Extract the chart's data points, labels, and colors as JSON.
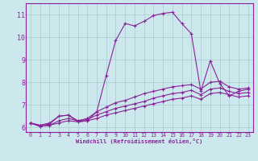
{
  "xlabel": "Windchill (Refroidissement éolien,°C)",
  "xlim": [
    -0.5,
    23.5
  ],
  "ylim": [
    5.8,
    11.5
  ],
  "bg_color": "#cce8ec",
  "line_color": "#882299",
  "grid_color": "#a8ccd0",
  "xticks": [
    0,
    1,
    2,
    3,
    4,
    5,
    6,
    7,
    8,
    9,
    10,
    11,
    12,
    13,
    14,
    15,
    16,
    17,
    18,
    19,
    20,
    21,
    22,
    23
  ],
  "yticks": [
    6,
    7,
    8,
    9,
    10,
    11
  ],
  "curves": [
    {
      "x": [
        0,
        1,
        2,
        3,
        4,
        5,
        6,
        7,
        8,
        9,
        10,
        11,
        12,
        13,
        14,
        15,
        16,
        17,
        18,
        19,
        20,
        21,
        22,
        23
      ],
      "y": [
        6.2,
        6.1,
        6.15,
        6.5,
        6.55,
        6.25,
        6.3,
        6.7,
        8.3,
        9.85,
        10.6,
        10.5,
        10.7,
        10.95,
        11.05,
        11.1,
        10.6,
        10.15,
        7.6,
        8.95,
        7.95,
        7.4,
        7.6,
        7.7
      ]
    },
    {
      "x": [
        0,
        1,
        2,
        3,
        4,
        5,
        6,
        7,
        8,
        9,
        10,
        11,
        12,
        13,
        14,
        15,
        16,
        17,
        18,
        19,
        20,
        21,
        22,
        23
      ],
      "y": [
        6.2,
        6.1,
        6.2,
        6.5,
        6.55,
        6.3,
        6.4,
        6.7,
        6.9,
        7.1,
        7.2,
        7.35,
        7.5,
        7.6,
        7.7,
        7.8,
        7.85,
        7.9,
        7.7,
        8.0,
        8.05,
        7.8,
        7.7,
        7.75
      ]
    },
    {
      "x": [
        0,
        1,
        2,
        3,
        4,
        5,
        6,
        7,
        8,
        9,
        10,
        11,
        12,
        13,
        14,
        15,
        16,
        17,
        18,
        19,
        20,
        21,
        22,
        23
      ],
      "y": [
        6.2,
        6.05,
        6.1,
        6.2,
        6.3,
        6.25,
        6.3,
        6.4,
        6.55,
        6.65,
        6.75,
        6.85,
        6.95,
        7.05,
        7.15,
        7.25,
        7.3,
        7.4,
        7.25,
        7.5,
        7.55,
        7.45,
        7.35,
        7.4
      ]
    },
    {
      "x": [
        0,
        1,
        2,
        3,
        4,
        5,
        6,
        7,
        8,
        9,
        10,
        11,
        12,
        13,
        14,
        15,
        16,
        17,
        18,
        19,
        20,
        21,
        22,
        23
      ],
      "y": [
        6.2,
        6.05,
        6.1,
        6.3,
        6.4,
        6.3,
        6.35,
        6.55,
        6.7,
        6.85,
        6.95,
        7.05,
        7.15,
        7.3,
        7.4,
        7.5,
        7.55,
        7.65,
        7.45,
        7.7,
        7.75,
        7.6,
        7.5,
        7.55
      ]
    }
  ]
}
